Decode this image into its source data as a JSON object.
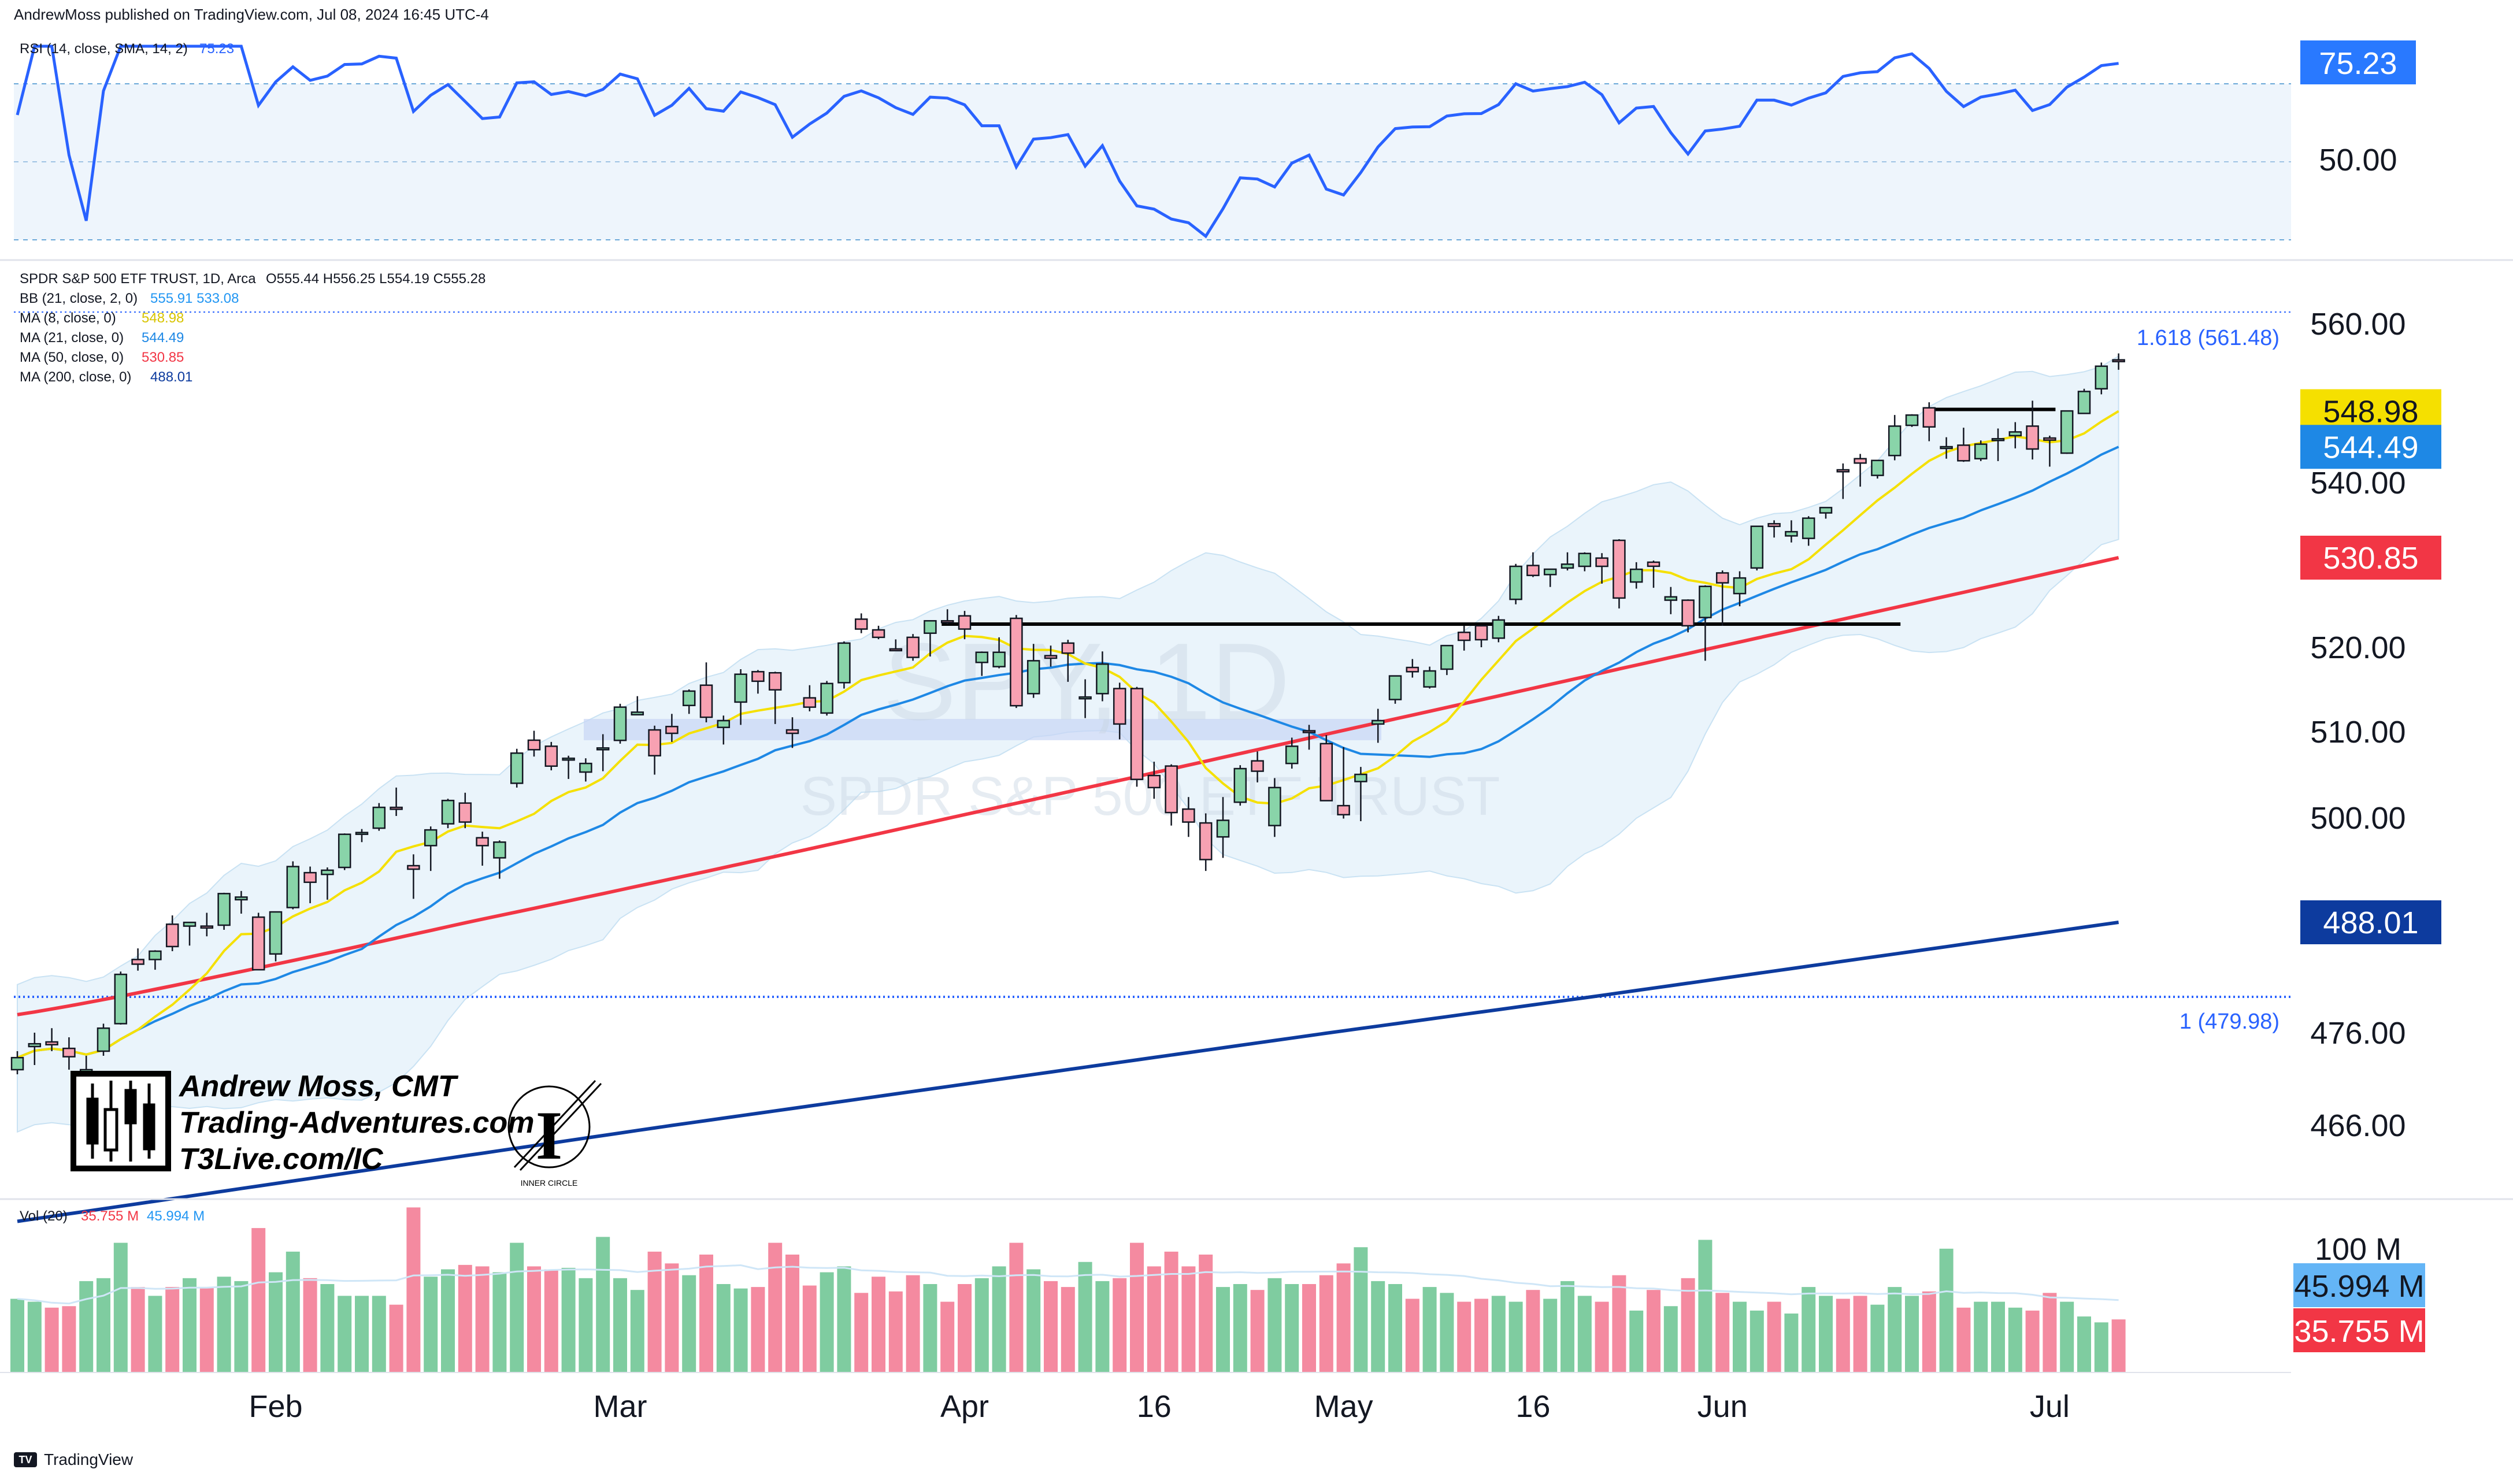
{
  "header": {
    "published": "AndrewMoss published on TradingView.com, Jul 08, 2024 16:45 UTC-4"
  },
  "footer": {
    "brand": "TradingView",
    "logo_text": "TV"
  },
  "watermark": {
    "symbol": "SPY, 1D",
    "name": "SPDR S&P 500 ETF TRUST"
  },
  "branding": {
    "lines": [
      "Andrew Moss, CMT",
      "Trading-Adventures.com",
      "T3Live.com/IC"
    ],
    "inner_circle_text": "INNER CIRCLE"
  },
  "rsi_panel": {
    "legend_name": "RSI (14, close, SMA, 14, 2)",
    "legend_value": "75.23",
    "value_label": "75.23",
    "level_label": "50.00",
    "value": 75.23,
    "color": "#2962ff"
  },
  "price_legend": {
    "title": "SPDR S&P 500 ETF TRUST, 1D, Arca",
    "ohlc": "O555.44  H556.25  L554.19  C555.28",
    "lines": [
      {
        "name": "BB (21, close, 2, 0)",
        "values": "555.91  533.08",
        "color": "#2196f3"
      },
      {
        "name": "MA (8, close, 0)",
        "values": "548.98",
        "color": "#f5e000"
      },
      {
        "name": "MA (21, close, 0)",
        "values": "544.49",
        "color": "#1e88e5"
      },
      {
        "name": "MA (50, close, 0)",
        "values": "530.85",
        "color": "#f23645"
      },
      {
        "name": "MA (200, close, 0)",
        "values": "488.01",
        "color": "#0d3b9e"
      }
    ]
  },
  "volume_panel": {
    "legend_name": "Vol (20)",
    "legend_value_1": "35.755 M",
    "legend_value_2": "45.994 M",
    "axis_label": "100 M",
    "ma_label": "45.994 M",
    "vol_label": "35.755 M"
  },
  "fib_labels": {
    "upper": "1.618 (561.48)",
    "lower": "1 (479.98)"
  },
  "price_axis": {
    "ticks": [
      "560.00",
      "540.00",
      "520.00",
      "510.00",
      "500.00",
      "476.00",
      "466.00"
    ],
    "badges": [
      {
        "text": "548.98",
        "value": 548.98,
        "bg": "#f5e000",
        "fg": "#131722"
      },
      {
        "text": "544.49",
        "value": 544.49,
        "bg": "#1e88e5",
        "fg": "#ffffff"
      },
      {
        "text": "530.85",
        "value": 530.85,
        "bg": "#f23645",
        "fg": "#ffffff"
      },
      {
        "text": "488.01",
        "value": 488.01,
        "bg": "#0d3b9e",
        "fg": "#ffffff"
      }
    ]
  },
  "time_axis": {
    "labels": [
      "Feb",
      "Mar",
      "Apr",
      "16",
      "May",
      "16",
      "Jun",
      "Jul"
    ]
  },
  "colors": {
    "up": "#89d4a9",
    "down": "#f7a1b2",
    "up_vol": "#7fcca0",
    "down_vol": "#f48aa0",
    "ma8": "#f5e000",
    "ma21": "#1e88e5",
    "ma50": "#f23645",
    "ma200": "#0d3b9e",
    "bb_fill": "#eaf4fb",
    "rsi": "#2962ff",
    "rsi_fill": "#eef5fc"
  },
  "chart_data": {
    "type": "candlestick",
    "symbol": "SPY",
    "timeframe": "1D",
    "exchange": "Arca",
    "last": {
      "open": 555.44,
      "high": 556.25,
      "low": 554.19,
      "close": 555.28
    },
    "dates": [
      "2024-01-10",
      "2024-01-11",
      "2024-01-12",
      "2024-01-16",
      "2024-01-17",
      "2024-01-18",
      "2024-01-19",
      "2024-01-22",
      "2024-01-23",
      "2024-01-24",
      "2024-01-25",
      "2024-01-26",
      "2024-01-29",
      "2024-01-30",
      "2024-01-31",
      "2024-02-01",
      "2024-02-02",
      "2024-02-05",
      "2024-02-06",
      "2024-02-07",
      "2024-02-08",
      "2024-02-09",
      "2024-02-12",
      "2024-02-13",
      "2024-02-14",
      "2024-02-15",
      "2024-02-16",
      "2024-02-20",
      "2024-02-21",
      "2024-02-22",
      "2024-02-23",
      "2024-02-26",
      "2024-02-27",
      "2024-02-28",
      "2024-02-29",
      "2024-03-01",
      "2024-03-04",
      "2024-03-05",
      "2024-03-06",
      "2024-03-07",
      "2024-03-08",
      "2024-03-11",
      "2024-03-12",
      "2024-03-13",
      "2024-03-14",
      "2024-03-15",
      "2024-03-18",
      "2024-03-19",
      "2024-03-20",
      "2024-03-21",
      "2024-03-22",
      "2024-03-25",
      "2024-03-26",
      "2024-03-27",
      "2024-03-28",
      "2024-04-01",
      "2024-04-02",
      "2024-04-03",
      "2024-04-04",
      "2024-04-05",
      "2024-04-08",
      "2024-04-09",
      "2024-04-10",
      "2024-04-11",
      "2024-04-12",
      "2024-04-15",
      "2024-04-16",
      "2024-04-17",
      "2024-04-18",
      "2024-04-19",
      "2024-04-22",
      "2024-04-23",
      "2024-04-24",
      "2024-04-25",
      "2024-04-26",
      "2024-04-29",
      "2024-04-30",
      "2024-05-01",
      "2024-05-02",
      "2024-05-03",
      "2024-05-06",
      "2024-05-07",
      "2024-05-08",
      "2024-05-09",
      "2024-05-10",
      "2024-05-13",
      "2024-05-14",
      "2024-05-15",
      "2024-05-16",
      "2024-05-17",
      "2024-05-20",
      "2024-05-21",
      "2024-05-22",
      "2024-05-23",
      "2024-05-24",
      "2024-05-28",
      "2024-05-29",
      "2024-05-30",
      "2024-05-31",
      "2024-06-03",
      "2024-06-04",
      "2024-06-05",
      "2024-06-06",
      "2024-06-07",
      "2024-06-10",
      "2024-06-11",
      "2024-06-12",
      "2024-06-13",
      "2024-06-14",
      "2024-06-17",
      "2024-06-18",
      "2024-06-20",
      "2024-06-21",
      "2024-06-24",
      "2024-06-25",
      "2024-06-26",
      "2024-06-27",
      "2024-06-28",
      "2024-07-01",
      "2024-07-02",
      "2024-07-03",
      "2024-07-05",
      "2024-07-08"
    ],
    "ohlc": [
      [
        472.0,
        474.0,
        471.5,
        473.3
      ],
      [
        474.5,
        476.0,
        472.5,
        474.8
      ],
      [
        475.0,
        476.5,
        474.0,
        474.7
      ],
      [
        474.3,
        475.5,
        472.0,
        473.4
      ],
      [
        471.0,
        473.5,
        470.5,
        472.0
      ],
      [
        474.0,
        477.0,
        473.5,
        476.5
      ],
      [
        477.0,
        482.7,
        476.9,
        482.4
      ],
      [
        484.0,
        485.2,
        482.8,
        483.5
      ],
      [
        484.0,
        485.0,
        482.9,
        484.9
      ],
      [
        487.8,
        488.8,
        484.9,
        485.4
      ],
      [
        487.6,
        488.0,
        485.5,
        488.0
      ],
      [
        487.6,
        489.1,
        486.5,
        487.4
      ],
      [
        487.7,
        491.4,
        487.2,
        491.3
      ],
      [
        490.6,
        491.6,
        489.0,
        490.9
      ],
      [
        488.6,
        489.1,
        482.9,
        482.9
      ],
      [
        484.6,
        489.2,
        483.8,
        489.2
      ],
      [
        489.7,
        495.0,
        489.5,
        494.4
      ],
      [
        493.7,
        494.4,
        490.2,
        492.6
      ],
      [
        493.5,
        494.3,
        490.6,
        493.98
      ],
      [
        494.3,
        498.2,
        494.0,
        498.1
      ],
      [
        498.1,
        498.7,
        497.2,
        498.3
      ],
      [
        498.8,
        501.7,
        498.5,
        501.2
      ],
      [
        501.2,
        503.5,
        500.2,
        500.98
      ],
      [
        494.5,
        495.8,
        490.7,
        494.1
      ],
      [
        496.8,
        499.0,
        493.9,
        498.6
      ],
      [
        499.3,
        502.2,
        498.8,
        502.0
      ],
      [
        501.7,
        502.9,
        498.8,
        499.5
      ],
      [
        497.7,
        498.4,
        494.5,
        496.8
      ],
      [
        495.4,
        497.4,
        493.0,
        497.2
      ],
      [
        504.0,
        508.0,
        503.5,
        507.5
      ],
      [
        509.0,
        510.1,
        507.1,
        507.9
      ],
      [
        508.3,
        508.8,
        505.5,
        505.99
      ],
      [
        506.7,
        507.2,
        504.5,
        506.9
      ],
      [
        505.3,
        506.9,
        504.2,
        506.3
      ],
      [
        508.1,
        509.7,
        505.4,
        508.1
      ],
      [
        508.98,
        513.3,
        508.6,
        512.9
      ],
      [
        512.0,
        514.2,
        512.0,
        512.3
      ],
      [
        510.2,
        510.7,
        505.0,
        507.2
      ],
      [
        510.6,
        512.1,
        508.8,
        509.8
      ],
      [
        513.1,
        515.0,
        512.1,
        514.8
      ],
      [
        515.5,
        518.2,
        511.1,
        511.7
      ],
      [
        510.5,
        511.9,
        508.5,
        511.3
      ],
      [
        513.5,
        517.4,
        510.8,
        516.8
      ],
      [
        517.1,
        517.3,
        514.5,
        515.97
      ],
      [
        516.97,
        517.1,
        510.9,
        514.95
      ],
      [
        510.2,
        511.7,
        508.1,
        509.8
      ],
      [
        514.0,
        515.5,
        512.4,
        512.9
      ],
      [
        512.2,
        516.0,
        511.9,
        515.7
      ],
      [
        515.8,
        520.7,
        515.1,
        520.5
      ],
      [
        523.4,
        524.1,
        521.7,
        522.2
      ],
      [
        522.1,
        522.6,
        520.97,
        521.2
      ],
      [
        519.8,
        520.95,
        519.6,
        519.77
      ],
      [
        521.2,
        521.6,
        518.4,
        518.8
      ],
      [
        521.7,
        523.2,
        518.9,
        523.2
      ],
      [
        523.2,
        524.6,
        522.8,
        523.07
      ],
      [
        523.8,
        524.4,
        520.97,
        522.2
      ],
      [
        518.2,
        519.5,
        516.6,
        519.4
      ],
      [
        517.7,
        521.2,
        517.5,
        519.4
      ],
      [
        523.5,
        523.9,
        512.8,
        513.07
      ],
      [
        514.5,
        520.4,
        514.0,
        518.4
      ],
      [
        519.0,
        520.2,
        517.7,
        518.7
      ],
      [
        520.5,
        520.9,
        515.9,
        519.3
      ],
      [
        514.0,
        516.2,
        511.6,
        514.1
      ],
      [
        514.5,
        519.5,
        513.6,
        518.0
      ],
      [
        515.1,
        515.8,
        509.1,
        510.9
      ],
      [
        515.1,
        515.3,
        503.6,
        504.45
      ],
      [
        504.9,
        506.5,
        502.2,
        503.5
      ],
      [
        506.0,
        506.2,
        499.1,
        500.6
      ],
      [
        501.0,
        502.4,
        497.8,
        499.5
      ],
      [
        499.4,
        500.5,
        493.9,
        495.2
      ],
      [
        497.8,
        502.4,
        495.4,
        499.7
      ],
      [
        501.8,
        506.1,
        501.4,
        505.7
      ],
      [
        506.6,
        507.7,
        504.1,
        505.4
      ],
      [
        499.1,
        504.6,
        497.8,
        503.5
      ],
      [
        506.3,
        509.3,
        505.7,
        508.3
      ],
      [
        510.1,
        510.8,
        507.9,
        510.06
      ],
      [
        508.6,
        509.6,
        501.98,
        501.98
      ],
      [
        501.4,
        508.2,
        499.9,
        500.35
      ],
      [
        504.2,
        505.9,
        499.6,
        505.03
      ],
      [
        510.9,
        512.7,
        508.7,
        511.3
      ],
      [
        513.8,
        516.6,
        513.3,
        516.6
      ],
      [
        517.6,
        518.6,
        516.4,
        517.1
      ],
      [
        515.3,
        517.7,
        515.1,
        517.19
      ],
      [
        517.4,
        520.2,
        516.7,
        520.2
      ],
      [
        521.8,
        522.6,
        519.6,
        520.84
      ],
      [
        522.6,
        522.7,
        520.0,
        520.91
      ],
      [
        521.1,
        523.8,
        520.6,
        523.3
      ],
      [
        525.8,
        530.1,
        525.2,
        529.8
      ],
      [
        529.9,
        531.5,
        528.5,
        528.7
      ],
      [
        528.8,
        529.5,
        527.3,
        529.45
      ],
      [
        529.6,
        531.5,
        529.3,
        530.06
      ],
      [
        529.8,
        531.5,
        529.2,
        531.36
      ],
      [
        530.8,
        531.4,
        527.7,
        529.8
      ],
      [
        532.96,
        533.1,
        524.7,
        525.96
      ],
      [
        527.9,
        530.3,
        527.1,
        529.44
      ],
      [
        530.3,
        530.5,
        527.2,
        529.81
      ],
      [
        525.7,
        527.3,
        524.0,
        526.1
      ],
      [
        525.7,
        525.8,
        521.8,
        522.6
      ],
      [
        523.6,
        527.5,
        518.4,
        527.37
      ],
      [
        529.0,
        529.3,
        522.6,
        527.8
      ],
      [
        526.5,
        529.2,
        524.96,
        528.39
      ],
      [
        529.6,
        534.7,
        529.3,
        534.67
      ],
      [
        534.98,
        535.4,
        533.3,
        534.66
      ],
      [
        533.5,
        535.4,
        532.7,
        534.01
      ],
      [
        533.2,
        535.9,
        532.3,
        535.66
      ],
      [
        536.3,
        537.0,
        535.6,
        536.95
      ],
      [
        541.6,
        542.4,
        538.0,
        541.36
      ],
      [
        543.0,
        543.6,
        539.5,
        542.45
      ],
      [
        540.9,
        542.8,
        540.5,
        542.78
      ],
      [
        543.4,
        548.5,
        542.8,
        547.1
      ],
      [
        547.2,
        548.6,
        547.0,
        548.49
      ],
      [
        549.4,
        550.1,
        545.2,
        547.0
      ],
      [
        544.4,
        545.7,
        543.0,
        544.51
      ],
      [
        544.7,
        546.9,
        542.6,
        542.74
      ],
      [
        543.0,
        545.3,
        542.7,
        544.83
      ],
      [
        545.4,
        546.8,
        542.7,
        545.51
      ],
      [
        545.9,
        547.6,
        544.3,
        546.37
      ],
      [
        547.1,
        550.3,
        542.9,
        544.22
      ],
      [
        545.6,
        545.9,
        542.0,
        545.34
      ],
      [
        543.7,
        549.0,
        543.6,
        549.01
      ],
      [
        548.7,
        551.8,
        548.7,
        551.46
      ],
      [
        551.8,
        555.1,
        551.1,
        554.64
      ],
      [
        555.44,
        556.25,
        554.19,
        555.28
      ]
    ],
    "volume_millions": [
      50,
      48,
      44,
      45,
      62,
      64,
      88,
      58,
      52,
      58,
      64,
      58,
      65,
      62,
      98,
      68,
      82,
      64,
      60,
      52,
      52,
      52,
      46,
      112,
      65,
      70,
      73,
      72,
      68,
      88,
      72,
      70,
      71,
      64,
      92,
      64,
      56,
      82,
      74,
      66,
      80,
      60,
      57,
      58,
      88,
      80,
      59,
      68,
      72,
      54,
      65,
      55,
      66,
      60,
      48,
      60,
      64,
      72,
      88,
      70,
      62,
      58,
      75,
      62,
      64,
      88,
      72,
      82,
      72,
      80,
      58,
      60,
      56,
      64,
      60,
      60,
      66,
      74,
      85,
      62,
      60,
      50,
      58,
      54,
      48,
      50,
      52,
      48,
      56,
      50,
      62,
      52,
      48,
      66,
      42,
      56,
      45,
      64,
      90,
      54,
      48,
      42,
      48,
      40,
      58,
      52,
      50,
      52,
      46,
      58,
      52,
      55,
      84,
      44,
      48,
      48,
      44,
      42,
      54,
      48,
      38,
      34,
      36
    ],
    "volume_ma20_millions": 45.994,
    "volume_last_millions": 35.755,
    "overlays": {
      "ma8_last": 548.98,
      "ma21_last": 544.49,
      "ma50_last": 530.85,
      "ma200_last": 488.01,
      "bb_upper_last": 555.91,
      "bb_lower_last": 533.08
    },
    "horizontal_lines": [
      {
        "value": 522.8,
        "from": "2024-03-28",
        "to": "2024-06-17"
      },
      {
        "value": 549.2,
        "from": "2024-06-20",
        "to": "2024-07-01"
      }
    ],
    "fibonacci": [
      {
        "level": "1.618",
        "value": 561.48
      },
      {
        "level": "1",
        "value": 479.98
      }
    ],
    "support_zone": [
      509.0,
      511.5
    ],
    "rsi_last": 75.23,
    "rsi_levels": [
      70,
      50,
      30
    ],
    "price_axis": {
      "ticks": [
        560,
        540,
        520,
        510,
        500,
        476,
        466
      ]
    },
    "xlabel": "",
    "ylabel": ""
  }
}
